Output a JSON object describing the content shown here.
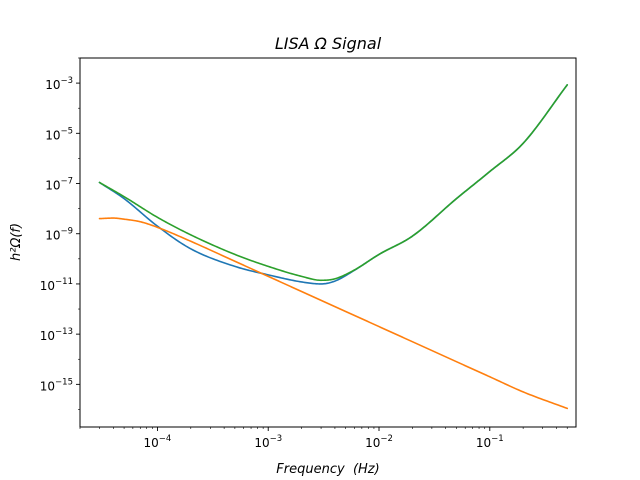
{
  "chart_data": {
    "type": "line",
    "title": "LISA Ω Signal",
    "xlabel": "Frequency  (Hz)",
    "ylabel": "h²Ω(f)",
    "xscale": "log",
    "yscale": "log",
    "xlim": [
      2e-05,
      0.6
    ],
    "ylim": [
      2e-17,
      0.01
    ],
    "grid": false,
    "legend": "none",
    "x_ticks": [
      {
        "base": "10",
        "exp": "−4",
        "value": 0.0001
      },
      {
        "base": "10",
        "exp": "−3",
        "value": 0.001
      },
      {
        "base": "10",
        "exp": "−2",
        "value": 0.01
      },
      {
        "base": "10",
        "exp": "−1",
        "value": 0.1
      }
    ],
    "y_ticks": [
      {
        "base": "10",
        "exp": "−15",
        "value": 1e-15
      },
      {
        "base": "10",
        "exp": "−13",
        "value": 1e-13
      },
      {
        "base": "10",
        "exp": "−11",
        "value": 1e-11
      },
      {
        "base": "10",
        "exp": "−9",
        "value": 1e-09
      },
      {
        "base": "10",
        "exp": "−7",
        "value": 1e-07
      },
      {
        "base": "10",
        "exp": "−5",
        "value": 1e-05
      },
      {
        "base": "10",
        "exp": "−3",
        "value": 0.001
      }
    ],
    "series": [
      {
        "color": "#1f77b4",
        "x": [
          3e-05,
          5e-05,
          0.0001,
          0.0002,
          0.0005,
          0.001,
          0.002,
          0.003,
          0.004,
          0.006,
          0.01,
          0.02,
          0.05,
          0.1,
          0.2,
          0.5
        ],
        "y": [
          1.1e-07,
          2.5e-08,
          2e-09,
          2.5e-10,
          5e-11,
          2.3e-11,
          1.2e-11,
          1e-11,
          1.3e-11,
          3.5e-11,
          1.5e-10,
          8e-10,
          2.5e-08,
          3e-07,
          4e-06,
          0.00085
        ]
      },
      {
        "color": "#ff7f0e",
        "x": [
          3e-05,
          4e-05,
          5e-05,
          7e-05,
          0.0001,
          0.0002,
          0.0005,
          0.001,
          0.002,
          0.005,
          0.01,
          0.02,
          0.05,
          0.1,
          0.2,
          0.5
        ],
        "y": [
          4e-09,
          4.2e-09,
          3.8e-09,
          3e-09,
          1.8e-09,
          5e-10,
          8e-11,
          2e-11,
          5e-12,
          8e-13,
          2e-13,
          5e-14,
          8e-15,
          2e-15,
          5e-16,
          1.1e-16
        ]
      },
      {
        "color": "#2ca02c",
        "x": [
          3e-05,
          5e-05,
          0.0001,
          0.0002,
          0.0005,
          0.001,
          0.002,
          0.003,
          0.004,
          0.006,
          0.01,
          0.02,
          0.05,
          0.1,
          0.2,
          0.5
        ],
        "y": [
          1.1e-07,
          3e-08,
          4.5e-09,
          9e-10,
          1.5e-10,
          5e-11,
          2e-11,
          1.4e-11,
          1.6e-11,
          3.6e-11,
          1.5e-10,
          8e-10,
          2.5e-08,
          3e-07,
          4e-06,
          0.00085
        ]
      }
    ]
  }
}
